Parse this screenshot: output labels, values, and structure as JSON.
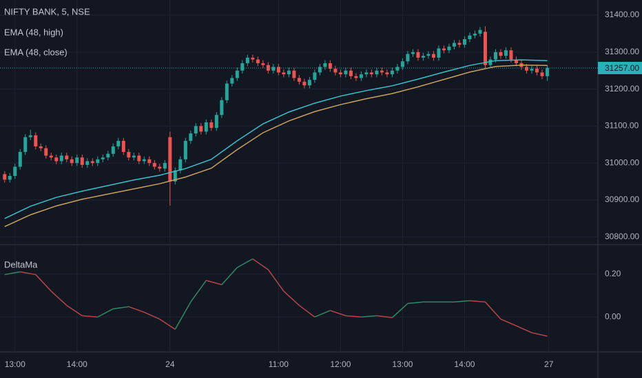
{
  "chart_data": [
    {
      "type": "candlestick",
      "title": "NIFTY BANK, 5, NSE",
      "up_color": "#26a69a",
      "down_color": "#ef5350",
      "xlim": [
        -0.9,
        114.8
      ],
      "ylim": [
        30781,
        31441
      ],
      "yticks": [
        {
          "value": 30800,
          "label": "30800.00"
        },
        {
          "value": 30900,
          "label": "30900.00"
        },
        {
          "value": 31000,
          "label": "31000.00"
        },
        {
          "value": 31100,
          "label": "31100.00"
        },
        {
          "value": 31200,
          "label": "31200.00"
        },
        {
          "value": 31300,
          "label": "31300.00"
        },
        {
          "value": 31400,
          "label": "31400.00"
        }
      ],
      "grid": true,
      "last_price": {
        "value": 31257,
        "label": "31257.00",
        "color": "#2ab0b8"
      },
      "open": [
        30970,
        30955,
        30965,
        30990,
        31030,
        31070,
        31075,
        31045,
        31040,
        31020,
        31015,
        31005,
        31020,
        31010,
        31000,
        31015,
        30995,
        31005,
        31000,
        31010,
        31015,
        31025,
        31045,
        31060,
        31030,
        31015,
        31020,
        31005,
        31010,
        31000,
        30990,
        30985,
        31070,
        30950,
        30980,
        31010,
        31060,
        31080,
        31100,
        31085,
        31110,
        31095,
        31130,
        31170,
        31215,
        31230,
        31250,
        31270,
        31285,
        31280,
        31270,
        31265,
        31250,
        31260,
        31245,
        31240,
        31250,
        31230,
        31220,
        31210,
        31225,
        31245,
        31260,
        31270,
        31255,
        31245,
        31240,
        31250,
        31235,
        31230,
        31240,
        31245,
        31240,
        31250,
        31245,
        31240,
        31250,
        31260,
        31275,
        31295,
        31300,
        31285,
        31290,
        31295,
        31285,
        31310,
        31305,
        31315,
        31325,
        31320,
        31335,
        31345,
        31350,
        31355,
        31265,
        31280,
        31300,
        31290,
        31305,
        31280,
        31270,
        31260,
        31250,
        31255,
        31245,
        31235
      ],
      "high": [
        30978,
        30973,
        30998,
        31038,
        31078,
        31090,
        31083,
        31053,
        31048,
        31028,
        31023,
        31028,
        31028,
        31018,
        31023,
        31023,
        31013,
        31013,
        31018,
        31023,
        31033,
        31053,
        31068,
        31068,
        31038,
        31028,
        31028,
        31018,
        31018,
        31008,
        30998,
        31008,
        31085,
        30988,
        31018,
        31068,
        31088,
        31108,
        31108,
        31118,
        31118,
        31138,
        31178,
        31223,
        31238,
        31258,
        31278,
        31293,
        31293,
        31288,
        31278,
        31273,
        31268,
        31268,
        31253,
        31258,
        31258,
        31238,
        31228,
        31233,
        31253,
        31268,
        31278,
        31278,
        31263,
        31253,
        31258,
        31258,
        31243,
        31248,
        31253,
        31253,
        31258,
        31258,
        31253,
        31258,
        31268,
        31283,
        31303,
        31308,
        31308,
        31298,
        31303,
        31303,
        31318,
        31318,
        31323,
        31333,
        31333,
        31343,
        31353,
        31358,
        31368,
        31370,
        31288,
        31308,
        31308,
        31313,
        31313,
        31288,
        31278,
        31268,
        31263,
        31263,
        31253,
        31265
      ],
      "low": [
        30947,
        30947,
        30957,
        30982,
        31022,
        31062,
        31037,
        31032,
        31012,
        31007,
        30997,
        30997,
        31002,
        30992,
        30992,
        30987,
        30987,
        30992,
        30992,
        31002,
        31007,
        31017,
        31037,
        31022,
        31007,
        31007,
        30997,
        30997,
        30992,
        30982,
        30977,
        30977,
        30885,
        30942,
        30972,
        31002,
        31052,
        31072,
        31077,
        31077,
        31087,
        31087,
        31122,
        31162,
        31207,
        31222,
        31242,
        31262,
        31272,
        31262,
        31257,
        31242,
        31242,
        31237,
        31232,
        31232,
        31222,
        31212,
        31202,
        31202,
        31217,
        31237,
        31252,
        31247,
        31237,
        31232,
        31232,
        31227,
        31222,
        31222,
        31232,
        31232,
        31232,
        31237,
        31232,
        31232,
        31242,
        31252,
        31267,
        31287,
        31277,
        31277,
        31282,
        31277,
        31277,
        31297,
        31297,
        31307,
        31312,
        31312,
        31327,
        31337,
        31342,
        31257,
        31257,
        31272,
        31282,
        31282,
        31272,
        31262,
        31252,
        31242,
        31242,
        31237,
        31227,
        31222
      ],
      "close": [
        30955,
        30965,
        30990,
        31030,
        31070,
        31075,
        31045,
        31040,
        31020,
        31015,
        31005,
        31020,
        31010,
        31000,
        31015,
        30995,
        31005,
        31000,
        31010,
        31015,
        31025,
        31045,
        31060,
        31030,
        31015,
        31020,
        31005,
        31010,
        31000,
        30990,
        30985,
        31000,
        30950,
        30980,
        31010,
        31060,
        31080,
        31100,
        31085,
        31110,
        31095,
        31130,
        31170,
        31215,
        31230,
        31250,
        31270,
        31285,
        31280,
        31270,
        31265,
        31250,
        31260,
        31245,
        31240,
        31250,
        31230,
        31220,
        31210,
        31225,
        31245,
        31260,
        31270,
        31255,
        31245,
        31240,
        31250,
        31235,
        31230,
        31240,
        31245,
        31240,
        31250,
        31245,
        31240,
        31250,
        31260,
        31275,
        31295,
        31300,
        31285,
        31290,
        31295,
        31285,
        31310,
        31305,
        31315,
        31325,
        31320,
        31335,
        31345,
        31350,
        31360,
        31265,
        31280,
        31300,
        31290,
        31305,
        31280,
        31270,
        31260,
        31250,
        31255,
        31245,
        31235,
        31257
      ],
      "series": [
        {
          "name": "EMA (48, high)",
          "color": "#3bc0cc",
          "x": [
            0,
            5,
            10,
            15,
            20,
            25,
            30,
            35,
            40,
            45,
            50,
            55,
            60,
            65,
            70,
            75,
            80,
            85,
            90,
            95,
            100,
            105
          ],
          "values": [
            30850,
            30883,
            30907,
            30924,
            30939,
            30954,
            30967,
            30985,
            31010,
            31060,
            31106,
            31138,
            31162,
            31181,
            31196,
            31209,
            31227,
            31246,
            31264,
            31277,
            31279,
            31277
          ]
        },
        {
          "name": "EMA (48, close)",
          "color": "#c9a25e",
          "x": [
            0,
            5,
            10,
            15,
            20,
            25,
            30,
            35,
            40,
            45,
            50,
            55,
            60,
            65,
            70,
            75,
            80,
            85,
            90,
            95,
            100,
            105
          ],
          "values": [
            30828,
            30860,
            30884,
            30902,
            30916,
            30930,
            30944,
            30962,
            30986,
            31036,
            31082,
            31114,
            31139,
            31158,
            31174,
            31188,
            31206,
            31226,
            31246,
            31261,
            31265,
            31264
          ]
        }
      ]
    },
    {
      "type": "line",
      "title": "DeltaMa",
      "rising_color": "#2f8a62",
      "falling_color": "#b94545",
      "xlim": [
        -0.9,
        114.8
      ],
      "ylim": [
        -0.159,
        0.333
      ],
      "yticks": [
        {
          "value": 0,
          "label": "0.00"
        },
        {
          "value": 0.2,
          "label": "0.20"
        }
      ],
      "xticks": [
        {
          "value": 2,
          "label": "13:00"
        },
        {
          "value": 14,
          "label": "14:00"
        },
        {
          "value": 32,
          "label": "24"
        },
        {
          "value": 53,
          "label": "11:00"
        },
        {
          "value": 65,
          "label": "12:00"
        },
        {
          "value": 77,
          "label": "13:00"
        },
        {
          "value": 89,
          "label": "14:00"
        },
        {
          "value": 105.3,
          "label": "27"
        }
      ],
      "grid": true,
      "x": [
        0,
        3,
        6,
        9,
        12,
        15,
        18,
        21,
        24,
        27,
        30,
        33,
        36,
        39,
        42,
        45,
        48,
        51,
        54,
        57,
        60,
        63,
        66,
        69,
        72,
        75,
        78,
        81,
        84,
        87,
        90,
        93,
        96,
        99,
        102,
        105
      ],
      "values": [
        0.197,
        0.21,
        0.197,
        0.12,
        0.054,
        0.006,
        0,
        0.038,
        0.048,
        0.022,
        -0.01,
        -0.057,
        0.07,
        0.17,
        0.15,
        0.23,
        0.27,
        0.22,
        0.12,
        0.054,
        0,
        0.03,
        0.006,
        0,
        0.006,
        -0.003,
        0.063,
        0.07,
        0.07,
        0.07,
        0.076,
        0.07,
        -0.01,
        -0.041,
        -0.073,
        -0.089
      ]
    }
  ]
}
